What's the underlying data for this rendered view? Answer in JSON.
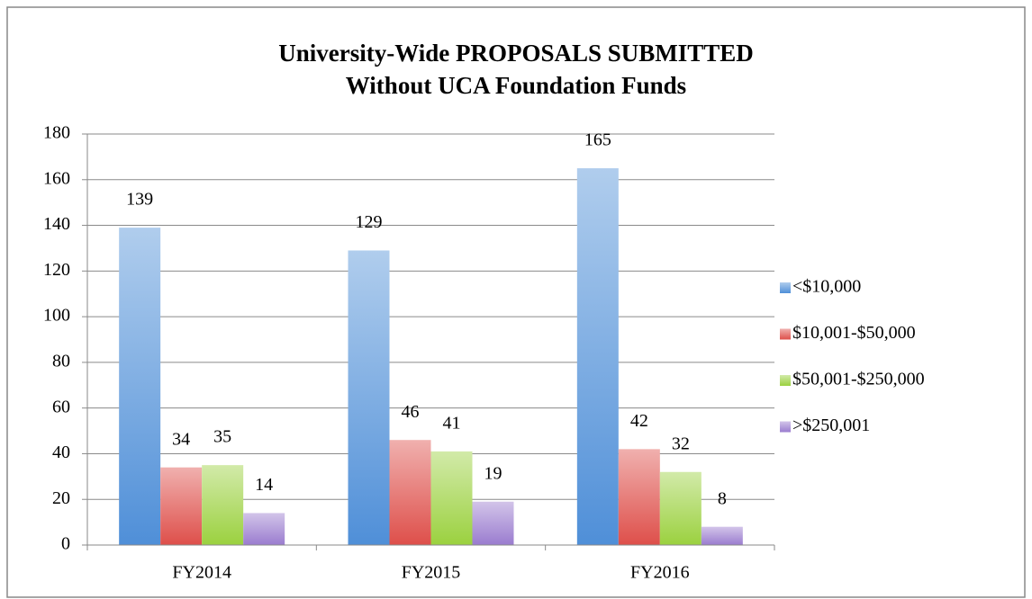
{
  "chart_data": {
    "type": "bar",
    "title": [
      "University-Wide PROPOSALS SUBMITTED",
      "Without UCA Foundation Funds"
    ],
    "categories": [
      "FY2014",
      "FY2015",
      "FY2016"
    ],
    "series": [
      {
        "name": "<$10,000",
        "color": "#4f8fd8",
        "values": [
          139,
          129,
          165
        ]
      },
      {
        "name": "$10,001-$50,000",
        "color": "#de4f4a",
        "values": [
          34,
          46,
          42
        ]
      },
      {
        "name": "$50,001-$250,000",
        "color": "#9bd13f",
        "values": [
          35,
          41,
          32
        ]
      },
      {
        "name": ">$250,001",
        "color": "#9a7ccf",
        "values": [
          14,
          19,
          8
        ]
      }
    ],
    "ylim": [
      0,
      180
    ],
    "yticks": [
      0,
      20,
      40,
      60,
      80,
      100,
      120,
      140,
      160,
      180
    ],
    "grid": true,
    "legend": "right"
  }
}
